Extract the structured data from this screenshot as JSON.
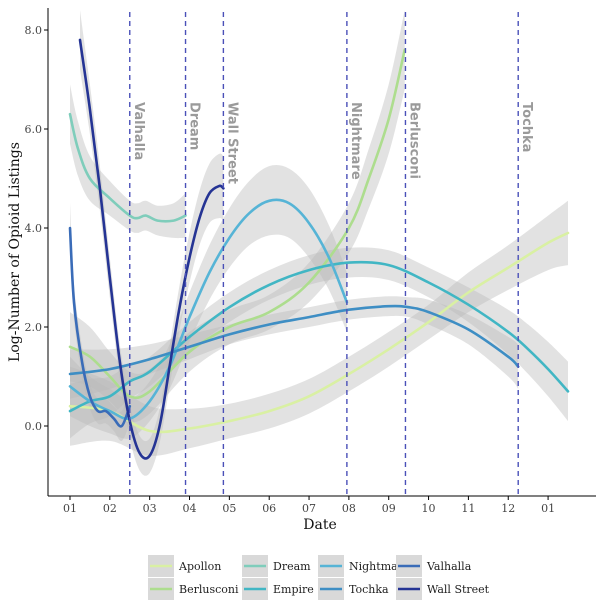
{
  "chart_data": {
    "type": "line",
    "xlabel": "Date",
    "ylabel": "Log-Number of Opioid Listings",
    "x_ticks": [
      "01",
      "02",
      "03",
      "04",
      "05",
      "06",
      "07",
      "08",
      "09",
      "10",
      "11",
      "12",
      "01"
    ],
    "x_domain": [
      0.0,
      12.5
    ],
    "ylim": [
      -1.4,
      8.4
    ],
    "y_ticks": [
      0,
      2,
      4,
      6,
      8
    ],
    "y_tick_labels": [
      "0.0",
      "2.0",
      "4.0",
      "6.0",
      "8.0"
    ],
    "grid": false,
    "legend_position": "bottom",
    "events": [
      {
        "name": "Valhalla",
        "x": 1.5
      },
      {
        "name": "Dream",
        "x": 2.9
      },
      {
        "name": "Wall Street",
        "x": 3.85
      },
      {
        "name": "Nightmare",
        "x": 6.95
      },
      {
        "name": "Berlusconi",
        "x": 8.42
      },
      {
        "name": "Tochka",
        "x": 11.25
      }
    ],
    "series": [
      {
        "name": "Apollon",
        "color": "#d9f0a3",
        "x": [
          0.0,
          1.0,
          2.0,
          3.0,
          4.0,
          5.0,
          6.0,
          7.0,
          8.0,
          9.0,
          10.0,
          11.0,
          12.0,
          12.5
        ],
        "y": [
          0.4,
          0.3,
          -0.1,
          -0.05,
          0.1,
          0.3,
          0.6,
          1.05,
          1.55,
          2.1,
          2.7,
          3.2,
          3.7,
          3.9
        ],
        "band": [
          0.8,
          0.6,
          0.5,
          0.4,
          0.35,
          0.35,
          0.35,
          0.35,
          0.35,
          0.35,
          0.4,
          0.45,
          0.55,
          0.65
        ]
      },
      {
        "name": "Berlusconi",
        "color": "#addd8e",
        "x": [
          0.0,
          0.5,
          1.0,
          1.5,
          2.0,
          3.0,
          4.0,
          5.0,
          6.0,
          7.0,
          7.5,
          8.0,
          8.4
        ],
        "y": [
          1.6,
          1.4,
          1.0,
          0.6,
          0.7,
          1.5,
          2.0,
          2.3,
          2.9,
          4.0,
          5.0,
          6.2,
          7.6
        ],
        "band": [
          0.7,
          0.6,
          0.5,
          0.5,
          0.45,
          0.4,
          0.35,
          0.35,
          0.4,
          0.5,
          0.6,
          0.7,
          0.8
        ]
      },
      {
        "name": "Dream",
        "color": "#7fcdbb",
        "x": [
          0.0,
          0.2,
          0.5,
          1.0,
          1.5,
          1.7,
          1.9,
          2.2,
          2.6,
          2.9
        ],
        "y": [
          6.3,
          5.6,
          5.0,
          4.6,
          4.25,
          4.2,
          4.25,
          4.15,
          4.15,
          4.25
        ],
        "band": [
          0.6,
          0.55,
          0.45,
          0.35,
          0.3,
          0.3,
          0.3,
          0.3,
          0.35,
          0.45
        ]
      },
      {
        "name": "Empire",
        "color": "#41b6c4",
        "x": [
          0.0,
          0.5,
          1.0,
          1.5,
          2.0,
          3.0,
          4.0,
          5.0,
          6.0,
          7.0,
          8.0,
          9.0,
          10.0,
          11.0,
          11.5,
          12.0,
          12.5
        ],
        "y": [
          0.3,
          0.5,
          0.6,
          0.9,
          1.1,
          1.8,
          2.4,
          2.85,
          3.15,
          3.3,
          3.25,
          2.9,
          2.45,
          1.9,
          1.55,
          1.15,
          0.7
        ],
        "band": [
          0.55,
          0.45,
          0.4,
          0.35,
          0.3,
          0.3,
          0.3,
          0.3,
          0.3,
          0.3,
          0.3,
          0.3,
          0.35,
          0.45,
          0.5,
          0.55,
          0.6
        ]
      },
      {
        "name": "Nightmare",
        "color": "#56b4d6",
        "x": [
          0.0,
          0.5,
          1.0,
          1.5,
          2.0,
          2.5,
          3.0,
          3.5,
          4.0,
          4.5,
          5.0,
          5.5,
          6.0,
          6.5,
          6.95
        ],
        "y": [
          0.8,
          0.5,
          0.3,
          0.15,
          0.5,
          1.2,
          2.2,
          3.1,
          3.8,
          4.3,
          4.55,
          4.5,
          4.1,
          3.4,
          2.5
        ],
        "band": [
          0.6,
          0.5,
          0.45,
          0.4,
          0.4,
          0.45,
          0.5,
          0.55,
          0.6,
          0.65,
          0.7,
          0.7,
          0.7,
          0.65,
          0.6
        ]
      },
      {
        "name": "Tochka",
        "color": "#3e8ec4",
        "x": [
          0.0,
          1.0,
          2.0,
          3.0,
          4.0,
          5.0,
          6.0,
          7.0,
          8.0,
          8.5,
          9.0,
          10.0,
          11.0,
          11.25
        ],
        "y": [
          1.05,
          1.15,
          1.35,
          1.6,
          1.85,
          2.05,
          2.2,
          2.35,
          2.42,
          2.4,
          2.3,
          1.95,
          1.4,
          1.2
        ],
        "band": [
          0.5,
          0.4,
          0.3,
          0.25,
          0.2,
          0.2,
          0.2,
          0.2,
          0.2,
          0.2,
          0.25,
          0.3,
          0.4,
          0.45
        ]
      },
      {
        "name": "Valhalla",
        "color": "#3a6cb8",
        "x": [
          0.0,
          0.1,
          0.3,
          0.5,
          0.7,
          0.9,
          1.1,
          1.3,
          1.5
        ],
        "y": [
          4.0,
          2.5,
          1.3,
          0.6,
          0.3,
          0.3,
          0.15,
          0.0,
          0.4
        ],
        "band": [
          0.5,
          0.35,
          0.3,
          0.25,
          0.25,
          0.25,
          0.25,
          0.3,
          0.35
        ]
      },
      {
        "name": "Wall Street",
        "color": "#253494",
        "x": [
          0.25,
          0.5,
          0.75,
          1.0,
          1.25,
          1.5,
          1.75,
          2.0,
          2.25,
          2.5,
          2.75,
          3.0,
          3.25,
          3.5,
          3.75,
          3.85
        ],
        "y": [
          7.8,
          6.4,
          4.8,
          3.0,
          1.3,
          0.1,
          -0.55,
          -0.6,
          0.0,
          1.2,
          2.4,
          3.4,
          4.2,
          4.7,
          4.85,
          4.8
        ],
        "band": [
          0.6,
          0.5,
          0.45,
          0.4,
          0.35,
          0.35,
          0.35,
          0.35,
          0.35,
          0.4,
          0.45,
          0.5,
          0.55,
          0.6,
          0.65,
          0.65
        ]
      }
    ]
  }
}
